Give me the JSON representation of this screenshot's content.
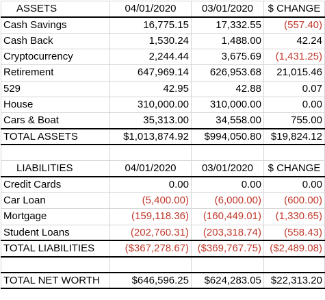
{
  "assets": {
    "header": [
      "ASSETS",
      "04/01/2020",
      "03/01/2020",
      "$ CHANGE"
    ],
    "rows": [
      {
        "label": "Cash Savings",
        "apr": "16,775.15",
        "mar": "17,332.55",
        "change": "(557.40)",
        "change_neg": true
      },
      {
        "label": "Cash Back",
        "apr": "1,530.24",
        "mar": "1,488.00",
        "change": "42.24",
        "change_neg": false
      },
      {
        "label": "Cryptocurrency",
        "apr": "2,244.44",
        "mar": "3,675.69",
        "change": "(1,431.25)",
        "change_neg": true
      },
      {
        "label": "Retirement",
        "apr": "647,969.14",
        "mar": "626,953.68",
        "change": "21,015.46",
        "change_neg": false
      },
      {
        "label": "529",
        "apr": "42.95",
        "mar": "42.88",
        "change": "0.07",
        "change_neg": false
      },
      {
        "label": "House",
        "apr": "310,000.00",
        "mar": "310,000.00",
        "change": "0.00",
        "change_neg": false
      },
      {
        "label": "Cars & Boat",
        "apr": "35,313.00",
        "mar": "34,558.00",
        "change": "755.00",
        "change_neg": false
      }
    ],
    "total": {
      "label": "TOTAL ASSETS",
      "apr": "$1,013,874.92",
      "mar": "$994,050.80",
      "change": "$19,824.12"
    }
  },
  "liabilities": {
    "header": [
      "LIABILITIES",
      "04/01/2020",
      "03/01/2020",
      "$ CHANGE"
    ],
    "rows": [
      {
        "label": "Credit Cards",
        "apr": "0.00",
        "mar": "0.00",
        "change": "0.00",
        "neg": false
      },
      {
        "label": "Car Loan",
        "apr": "(5,400.00)",
        "mar": "(6,000.00)",
        "change": "(600.00)",
        "neg": true
      },
      {
        "label": "Mortgage",
        "apr": "(159,118.36)",
        "mar": "(160,449.01)",
        "change": "(1,330.65)",
        "neg": true
      },
      {
        "label": "Student Loans",
        "apr": "(202,760.31)",
        "mar": "(203,318.74)",
        "change": "(558.43)",
        "neg": true
      }
    ],
    "total": {
      "label": "TOTAL LIABILITIES",
      "apr": "($367,278.67)",
      "mar": "($369,767.75)",
      "change": "($2,489.08)"
    }
  },
  "net_worth": {
    "label": "TOTAL NET WORTH",
    "apr": "$646,596.25",
    "mar": "$624,283.05",
    "change": "$22,313.20"
  },
  "colors": {
    "negative": "#c0392b",
    "border": "#d4d4d4"
  }
}
